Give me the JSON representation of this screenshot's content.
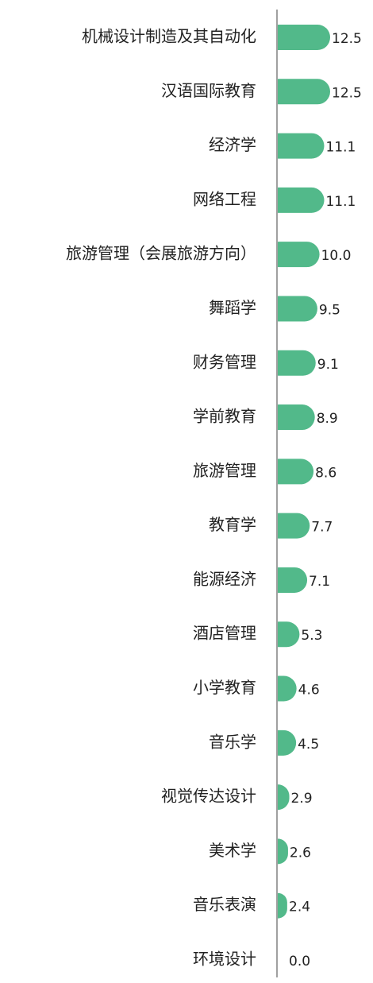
{
  "chart_data": {
    "type": "bar",
    "orientation": "horizontal",
    "categories": [
      "机械设计制造及其自动化",
      "汉语国际教育",
      "经济学",
      "网络工程",
      "旅游管理（会展旅游方向）",
      "舞蹈学",
      "财务管理",
      "学前教育",
      "旅游管理",
      "教育学",
      "能源经济",
      "酒店管理",
      "小学教育",
      "音乐学",
      "视觉传达设计",
      "美术学",
      "音乐表演",
      "环境设计"
    ],
    "values": [
      12.5,
      12.5,
      11.1,
      11.1,
      10.0,
      9.5,
      9.1,
      8.9,
      8.6,
      7.7,
      7.1,
      5.3,
      4.6,
      4.5,
      2.9,
      2.6,
      2.4,
      0.0
    ],
    "value_labels": [
      "12.5",
      "12.5",
      "11.1",
      "11.1",
      "10.0",
      "9.5",
      "9.1",
      "8.9",
      "8.6",
      "7.7",
      "7.1",
      "5.3",
      "4.6",
      "4.5",
      "2.9",
      "2.6",
      "2.4",
      "0.0"
    ],
    "color": "#52b98a",
    "xlim": [
      0,
      12.5
    ]
  }
}
